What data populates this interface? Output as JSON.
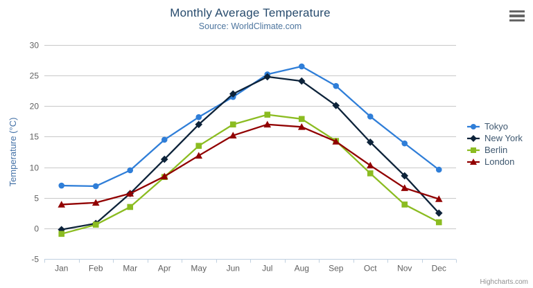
{
  "header": {
    "title": "Monthly Average Temperature",
    "subtitle": "Source: WorldClimate.com"
  },
  "icons": {
    "context_menu": "hamburger"
  },
  "credits": {
    "label": "Highcharts.com"
  },
  "colors": {
    "title_text": "#274b6d",
    "subtitle_text": "#4d759e",
    "axis_title_text": "#4572a7",
    "tick_label_text": "#606060",
    "legend_text": "#3E576F",
    "gridline": "#c8c8c8",
    "axis_line": "#C0D0E0",
    "credits_text": "#909090",
    "menu_icon": "#666666"
  },
  "chart_data": {
    "type": "line",
    "title": "Monthly Average Temperature",
    "subtitle": "Source: WorldClimate.com",
    "categories": [
      "Jan",
      "Feb",
      "Mar",
      "Apr",
      "May",
      "Jun",
      "Jul",
      "Aug",
      "Sep",
      "Oct",
      "Nov",
      "Dec"
    ],
    "xlabel": "",
    "ylabel": "Temperature (°C)",
    "ylim": [
      -5,
      30
    ],
    "ytick_interval": 5,
    "yticks": [
      30,
      25,
      20,
      15,
      10,
      5,
      0,
      -5
    ],
    "grid": "horizontal",
    "legend_position": "right",
    "series": [
      {
        "name": "Tokyo",
        "color": "#2f7ed8",
        "marker": "circle",
        "values": [
          7.0,
          6.9,
          9.5,
          14.5,
          18.2,
          21.5,
          25.2,
          26.5,
          23.3,
          18.3,
          13.9,
          9.6
        ]
      },
      {
        "name": "New York",
        "color": "#0d233a",
        "marker": "diamond",
        "values": [
          -0.2,
          0.8,
          5.7,
          11.3,
          17.0,
          22.0,
          24.8,
          24.1,
          20.1,
          14.1,
          8.6,
          2.5
        ]
      },
      {
        "name": "Berlin",
        "color": "#8bbc21",
        "marker": "square",
        "values": [
          -0.9,
          0.6,
          3.5,
          8.4,
          13.5,
          17.0,
          18.6,
          17.9,
          14.3,
          9.0,
          3.9,
          1.0
        ]
      },
      {
        "name": "London",
        "color": "#910000",
        "marker": "triangle",
        "values": [
          3.9,
          4.2,
          5.7,
          8.5,
          11.9,
          15.2,
          17.0,
          16.6,
          14.2,
          10.3,
          6.6,
          4.8
        ]
      }
    ]
  }
}
